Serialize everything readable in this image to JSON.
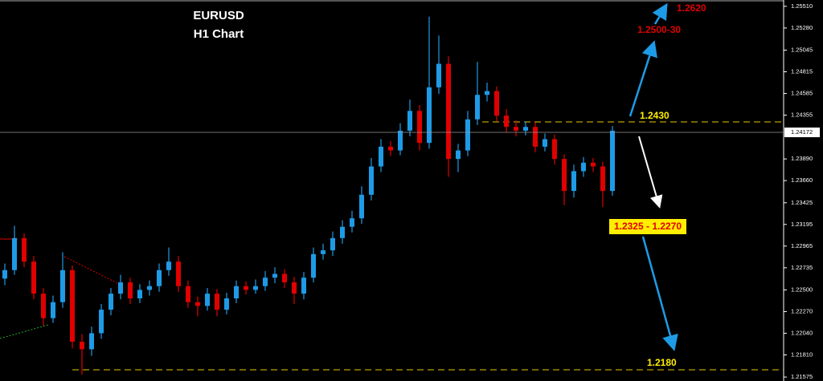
{
  "chart_data": {
    "type": "candlestick",
    "title": "EURUSD",
    "subtitle": "H1 Chart",
    "up_color": "#1e9be6",
    "down_color": "#e00000",
    "open": [
      1.2262,
      1.2271,
      1.2305,
      1.228,
      1.2246,
      1.222,
      1.2237,
      1.2271,
      1.2195,
      1.2187,
      1.2204,
      1.2229,
      1.2246,
      1.2258,
      1.2241,
      1.225,
      1.2254,
      1.2271,
      1.228,
      1.2254,
      1.2237,
      1.2233,
      1.2246,
      1.2229,
      1.2241,
      1.2254,
      1.225,
      1.2254,
      1.2263,
      1.2267,
      1.2258,
      1.2246,
      1.2263,
      1.2288,
      1.2292,
      1.2305,
      1.2317,
      1.2326,
      1.2351,
      1.2381,
      1.2402,
      1.2398,
      1.2419,
      1.244,
      1.2406,
      1.2465,
      1.249,
      1.2389,
      1.2398,
      1.2431,
      1.2457,
      1.2461,
      1.2435,
      1.2423,
      1.2419,
      1.2423,
      1.2402,
      1.241,
      1.2389,
      1.2355,
      1.2376,
      1.2385,
      1.2381,
      1.2355
    ],
    "high": [
      1.2278,
      1.2318,
      1.231,
      1.2286,
      1.2252,
      1.2244,
      1.229,
      1.2276,
      1.2203,
      1.2211,
      1.2235,
      1.2252,
      1.2266,
      1.2263,
      1.2256,
      1.226,
      1.2278,
      1.2295,
      1.2286,
      1.226,
      1.2243,
      1.2252,
      1.2251,
      1.2247,
      1.226,
      1.2259,
      1.2261,
      1.227,
      1.2274,
      1.2272,
      1.2264,
      1.2269,
      1.2295,
      1.2299,
      1.2312,
      1.2324,
      1.2334,
      1.236,
      1.239,
      1.241,
      1.2408,
      1.2427,
      1.2452,
      1.2446,
      1.254,
      1.252,
      1.2498,
      1.2405,
      1.244,
      1.2492,
      1.247,
      1.2466,
      1.2442,
      1.243,
      1.2429,
      1.2428,
      1.2416,
      1.2415,
      1.2394,
      1.2383,
      1.2391,
      1.239,
      1.2386,
      1.2424
    ],
    "low": [
      1.2255,
      1.2266,
      1.2274,
      1.224,
      1.2212,
      1.2215,
      1.2231,
      1.2188,
      1.216,
      1.218,
      1.2198,
      1.2223,
      1.224,
      1.2235,
      1.2236,
      1.2244,
      1.2248,
      1.2265,
      1.2248,
      1.2231,
      1.2222,
      1.2228,
      1.2222,
      1.2224,
      1.2236,
      1.2245,
      1.2246,
      1.2249,
      1.2257,
      1.2252,
      1.2235,
      1.224,
      1.2258,
      1.2282,
      1.2286,
      1.2299,
      1.2311,
      1.232,
      1.2345,
      1.2375,
      1.2392,
      1.2393,
      1.2413,
      1.2398,
      1.24,
      1.2458,
      1.237,
      1.2375,
      1.2392,
      1.2425,
      1.245,
      1.2429,
      1.2417,
      1.2413,
      1.2414,
      1.2396,
      1.2397,
      1.2383,
      1.234,
      1.2348,
      1.237,
      1.2375,
      1.2338,
      1.235
    ],
    "close": [
      1.2271,
      1.2305,
      1.228,
      1.2246,
      1.222,
      1.2237,
      1.2271,
      1.2195,
      1.2187,
      1.2204,
      1.2229,
      1.2246,
      1.2258,
      1.2241,
      1.225,
      1.2254,
      1.2271,
      1.228,
      1.2254,
      1.2237,
      1.2233,
      1.2246,
      1.2229,
      1.2241,
      1.2254,
      1.225,
      1.2254,
      1.2263,
      1.2267,
      1.2258,
      1.2246,
      1.2263,
      1.2288,
      1.2292,
      1.2305,
      1.2317,
      1.2326,
      1.2351,
      1.2381,
      1.2402,
      1.2398,
      1.2419,
      1.244,
      1.2406,
      1.2465,
      1.249,
      1.2389,
      1.2398,
      1.2431,
      1.2457,
      1.2461,
      1.2435,
      1.2423,
      1.2419,
      1.2423,
      1.2402,
      1.241,
      1.2389,
      1.2355,
      1.2376,
      1.2385,
      1.2381,
      1.2355,
      1.2419
    ],
    "ylim": [
      1.21533,
      1.25577
    ],
    "yticks": [
      {
        "value": 1.2551,
        "label": "1.25510"
      },
      {
        "value": 1.2528,
        "label": "1.25280"
      },
      {
        "value": 1.25045,
        "label": "1.25045"
      },
      {
        "value": 1.24815,
        "label": "1.24815"
      },
      {
        "value": 1.24585,
        "label": "1.24585"
      },
      {
        "value": 1.24355,
        "label": "1.24355"
      },
      {
        "value": 1.2389,
        "label": "1.23890"
      },
      {
        "value": 1.2366,
        "label": "1.23660"
      },
      {
        "value": 1.23425,
        "label": "1.23425"
      },
      {
        "value": 1.23195,
        "label": "1.23195"
      },
      {
        "value": 1.22965,
        "label": "1.22965"
      },
      {
        "value": 1.22735,
        "label": "1.22735"
      },
      {
        "value": 1.225,
        "label": "1.22500"
      },
      {
        "value": 1.2227,
        "label": "1.22270"
      },
      {
        "value": 1.2204,
        "label": "1.22040"
      },
      {
        "value": 1.2181,
        "label": "1.21810"
      },
      {
        "value": 1.21575,
        "label": "1.21575"
      }
    ],
    "current_price": {
      "value": 1.24172,
      "label": "1.24172"
    },
    "annotations": [
      "1.2620",
      "1.2500-30",
      "1.2430",
      "1.2325 - 1.2270",
      "1.2180"
    ]
  }
}
